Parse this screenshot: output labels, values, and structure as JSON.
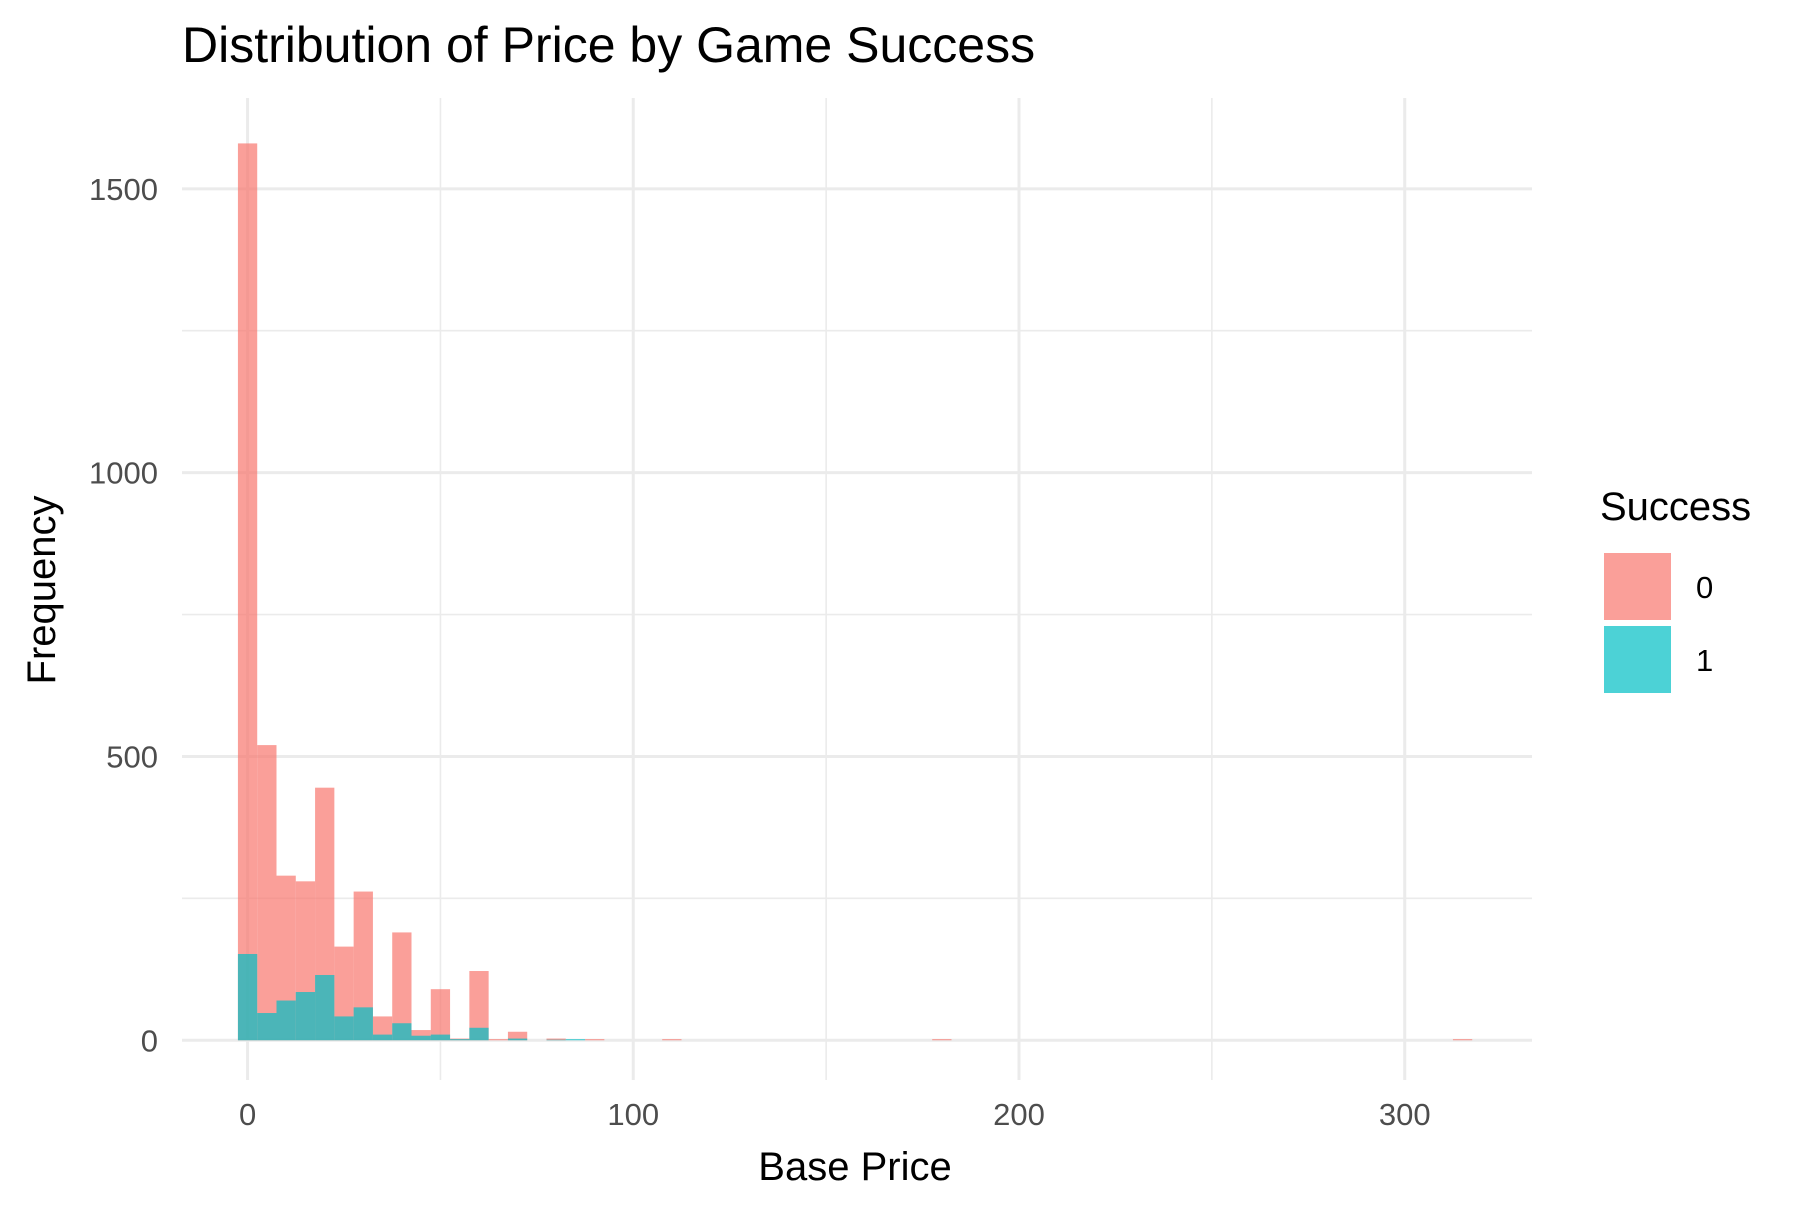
{
  "chart_data": {
    "type": "bar",
    "subtype": "overlapping histogram",
    "title": "Distribution of Price by Game Success",
    "xlabel": "Base Price",
    "ylabel": "Frequency",
    "xlim": [
      -17,
      333
    ],
    "ylim": [
      -70,
      1660
    ],
    "x_ticks": [
      0,
      100,
      200,
      300
    ],
    "x_tick_labels": [
      "0",
      "100",
      "200",
      "300"
    ],
    "y_ticks": [
      0,
      500,
      1000,
      1500
    ],
    "y_tick_labels": [
      "0",
      "500",
      "1000",
      "1500"
    ],
    "grid": true,
    "bin_width": 5,
    "legend": {
      "title": "Success",
      "position": "right",
      "entries": [
        {
          "label": "0",
          "color": "#F8766D"
        },
        {
          "label": "1",
          "color": "#00BFC4"
        }
      ]
    },
    "series": [
      {
        "name": "0",
        "color": "#F8766D",
        "bins": [
          {
            "x": 0,
            "count": 1580
          },
          {
            "x": 5,
            "count": 520
          },
          {
            "x": 10,
            "count": 290
          },
          {
            "x": 15,
            "count": 280
          },
          {
            "x": 20,
            "count": 445
          },
          {
            "x": 25,
            "count": 165
          },
          {
            "x": 30,
            "count": 262
          },
          {
            "x": 35,
            "count": 42
          },
          {
            "x": 40,
            "count": 190
          },
          {
            "x": 45,
            "count": 18
          },
          {
            "x": 50,
            "count": 90
          },
          {
            "x": 55,
            "count": 3
          },
          {
            "x": 60,
            "count": 122
          },
          {
            "x": 65,
            "count": 2
          },
          {
            "x": 70,
            "count": 15
          },
          {
            "x": 80,
            "count": 3
          },
          {
            "x": 90,
            "count": 2
          },
          {
            "x": 110,
            "count": 2
          },
          {
            "x": 180,
            "count": 2
          },
          {
            "x": 315,
            "count": 2
          }
        ]
      },
      {
        "name": "1",
        "color": "#00BFC4",
        "bins": [
          {
            "x": 0,
            "count": 152
          },
          {
            "x": 5,
            "count": 48
          },
          {
            "x": 10,
            "count": 70
          },
          {
            "x": 15,
            "count": 85
          },
          {
            "x": 20,
            "count": 115
          },
          {
            "x": 25,
            "count": 42
          },
          {
            "x": 30,
            "count": 58
          },
          {
            "x": 35,
            "count": 10
          },
          {
            "x": 40,
            "count": 30
          },
          {
            "x": 45,
            "count": 8
          },
          {
            "x": 50,
            "count": 10
          },
          {
            "x": 55,
            "count": 2
          },
          {
            "x": 60,
            "count": 22
          },
          {
            "x": 70,
            "count": 3
          },
          {
            "x": 80,
            "count": 1
          },
          {
            "x": 85,
            "count": 2
          }
        ]
      }
    ]
  }
}
